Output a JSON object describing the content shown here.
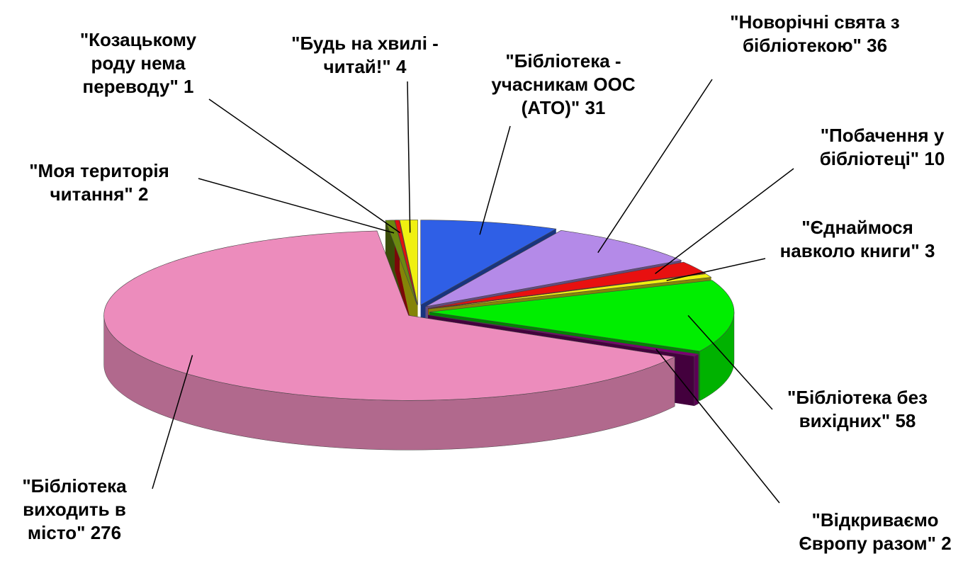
{
  "chart_data": {
    "type": "pie",
    "categories": [
      "\"Бібліотека - учасникам ООС (АТО)\"",
      "\"Новорічні свята з бібліотекою\"",
      "\"Побачення у бібліотеці\"",
      "\"Єднаймося навколо книги\"",
      "\"Бібліотека без вихідних\"",
      "\"Відкриваємо Європу разом\"",
      "\"Бібліотека виходить в місто\"",
      "\"Моя територія читання\"",
      "\"Козацькому роду нема переводу\"",
      "\"Будь на хвилі - читай!\""
    ],
    "values": [
      31,
      36,
      10,
      3,
      58,
      2,
      276,
      2,
      1,
      4
    ],
    "colors": [
      "#2f5fe6",
      "#b48ae8",
      "#e81010",
      "#f0f010",
      "#00ee00",
      "#7a0070",
      "#ec8cbc",
      "#6a8a10",
      "#e01010",
      "#f0f010"
    ]
  }
}
